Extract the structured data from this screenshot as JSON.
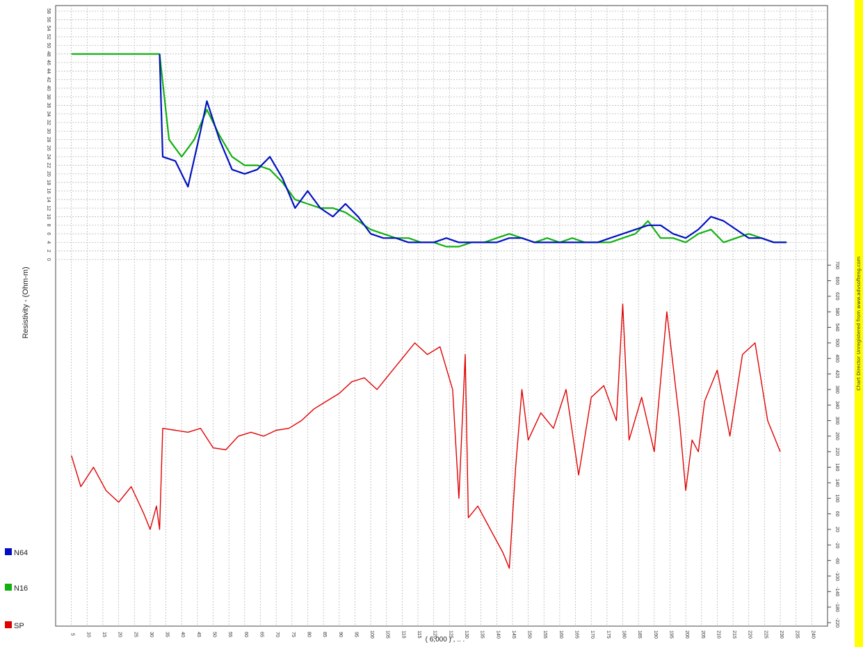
{
  "chart_data": {
    "type": "line",
    "orientation": "rotated-90-clockwise",
    "ylabel": "Resistivity - (Ohm-m)",
    "xlabel_partial": "( 6,000 )  ,  ..  .",
    "side_note": "Chart Director Unregistered from www.advsofteng.com",
    "colors": {
      "SP": "#e00000",
      "N16": "#10b010",
      "N64": "#0010c0"
    },
    "legend": [
      "SP",
      "N16",
      "N64"
    ],
    "legend_placement": "bottom-left",
    "grid": true,
    "depth_axis": {
      "ticks": [
        "5",
        "10",
        "15",
        "20",
        "25",
        "30",
        "35",
        "40",
        "45",
        "50",
        "55",
        "60",
        "65",
        "70",
        "75",
        "80",
        "85",
        "90",
        "95",
        "100",
        "105",
        "110",
        "115",
        "120",
        "125",
        "130",
        "135",
        "140",
        "145",
        "150",
        "155",
        "160",
        "165",
        "170",
        "175",
        "180",
        "185",
        "190",
        "195",
        "200",
        "205",
        "210",
        "215",
        "220",
        "225",
        "230",
        "235",
        "240"
      ]
    },
    "resistivity_axis": {
      "range": [
        0,
        58
      ],
      "ticks": [
        "0",
        "2",
        "4",
        "6",
        "8",
        "10",
        "12",
        "14",
        "16",
        "18",
        "20",
        "22",
        "24",
        "26",
        "28",
        "30",
        "32",
        "34",
        "36",
        "38",
        "40",
        "42",
        "44",
        "46",
        "48",
        "50",
        "52",
        "54",
        "56",
        "58"
      ]
    },
    "sp_axis": {
      "range": [
        -220,
        720
      ],
      "ticks": [
        "-220",
        "-180",
        "-140",
        "-100",
        "-60",
        "-20",
        "20",
        "60",
        "100",
        "140",
        "180",
        "220",
        "260",
        "300",
        "340",
        "380",
        "420",
        "460",
        "500",
        "540",
        "580",
        "620",
        "660",
        "700"
      ]
    },
    "series": [
      {
        "name": "N16",
        "axis": "resistivity",
        "values": [
          [
            5,
            48
          ],
          [
            10,
            48
          ],
          [
            15,
            48
          ],
          [
            20,
            48
          ],
          [
            25,
            48
          ],
          [
            30,
            48
          ],
          [
            33,
            48
          ],
          [
            36,
            28
          ],
          [
            40,
            24
          ],
          [
            44,
            28
          ],
          [
            48,
            35
          ],
          [
            52,
            29
          ],
          [
            56,
            24
          ],
          [
            60,
            22
          ],
          [
            64,
            22
          ],
          [
            68,
            21
          ],
          [
            72,
            18
          ],
          [
            76,
            14
          ],
          [
            80,
            13
          ],
          [
            84,
            12
          ],
          [
            88,
            12
          ],
          [
            92,
            11
          ],
          [
            96,
            9
          ],
          [
            100,
            7
          ],
          [
            104,
            6
          ],
          [
            108,
            5
          ],
          [
            112,
            5
          ],
          [
            116,
            4
          ],
          [
            120,
            4
          ],
          [
            124,
            3
          ],
          [
            128,
            3
          ],
          [
            132,
            4
          ],
          [
            136,
            4
          ],
          [
            140,
            5
          ],
          [
            144,
            6
          ],
          [
            148,
            5
          ],
          [
            152,
            4
          ],
          [
            156,
            5
          ],
          [
            160,
            4
          ],
          [
            164,
            5
          ],
          [
            168,
            4
          ],
          [
            172,
            4
          ],
          [
            176,
            4
          ],
          [
            180,
            5
          ],
          [
            184,
            6
          ],
          [
            188,
            9
          ],
          [
            192,
            5
          ],
          [
            196,
            5
          ],
          [
            200,
            4
          ],
          [
            204,
            6
          ],
          [
            208,
            7
          ],
          [
            212,
            4
          ],
          [
            216,
            5
          ],
          [
            220,
            6
          ],
          [
            224,
            5
          ],
          [
            228,
            4
          ],
          [
            232,
            4
          ]
        ]
      },
      {
        "name": "N64",
        "axis": "resistivity",
        "values": [
          [
            33,
            48
          ],
          [
            34,
            24
          ],
          [
            38,
            23
          ],
          [
            42,
            17
          ],
          [
            46,
            30
          ],
          [
            48,
            37
          ],
          [
            52,
            28
          ],
          [
            56,
            21
          ],
          [
            60,
            20
          ],
          [
            64,
            21
          ],
          [
            68,
            24
          ],
          [
            72,
            19
          ],
          [
            76,
            12
          ],
          [
            80,
            16
          ],
          [
            84,
            12
          ],
          [
            88,
            10
          ],
          [
            92,
            13
          ],
          [
            96,
            10
          ],
          [
            100,
            6
          ],
          [
            104,
            5
          ],
          [
            108,
            5
          ],
          [
            112,
            4
          ],
          [
            116,
            4
          ],
          [
            120,
            4
          ],
          [
            124,
            5
          ],
          [
            128,
            4
          ],
          [
            132,
            4
          ],
          [
            136,
            4
          ],
          [
            140,
            4
          ],
          [
            144,
            5
          ],
          [
            148,
            5
          ],
          [
            152,
            4
          ],
          [
            156,
            4
          ],
          [
            160,
            4
          ],
          [
            164,
            4
          ],
          [
            168,
            4
          ],
          [
            172,
            4
          ],
          [
            176,
            5
          ],
          [
            180,
            6
          ],
          [
            184,
            7
          ],
          [
            188,
            8
          ],
          [
            192,
            8
          ],
          [
            196,
            6
          ],
          [
            200,
            5
          ],
          [
            204,
            7
          ],
          [
            208,
            10
          ],
          [
            212,
            9
          ],
          [
            216,
            7
          ],
          [
            220,
            5
          ],
          [
            224,
            5
          ],
          [
            228,
            4
          ],
          [
            232,
            4
          ]
        ]
      },
      {
        "name": "SP",
        "axis": "sp",
        "values": [
          [
            5,
            210
          ],
          [
            8,
            130
          ],
          [
            12,
            180
          ],
          [
            16,
            120
          ],
          [
            20,
            90
          ],
          [
            24,
            130
          ],
          [
            28,
            60
          ],
          [
            30,
            20
          ],
          [
            32,
            80
          ],
          [
            33,
            20
          ],
          [
            34,
            280
          ],
          [
            38,
            275
          ],
          [
            42,
            270
          ],
          [
            46,
            280
          ],
          [
            50,
            230
          ],
          [
            54,
            225
          ],
          [
            58,
            260
          ],
          [
            62,
            270
          ],
          [
            66,
            260
          ],
          [
            70,
            275
          ],
          [
            74,
            280
          ],
          [
            78,
            300
          ],
          [
            82,
            330
          ],
          [
            86,
            350
          ],
          [
            90,
            370
          ],
          [
            94,
            400
          ],
          [
            98,
            410
          ],
          [
            102,
            380
          ],
          [
            106,
            420
          ],
          [
            110,
            460
          ],
          [
            114,
            500
          ],
          [
            118,
            470
          ],
          [
            122,
            490
          ],
          [
            126,
            380
          ],
          [
            128,
            100
          ],
          [
            130,
            470
          ],
          [
            131,
            50
          ],
          [
            134,
            80
          ],
          [
            138,
            20
          ],
          [
            142,
            -40
          ],
          [
            144,
            -80
          ],
          [
            146,
            180
          ],
          [
            148,
            380
          ],
          [
            150,
            250
          ],
          [
            154,
            320
          ],
          [
            158,
            280
          ],
          [
            162,
            380
          ],
          [
            166,
            160
          ],
          [
            170,
            360
          ],
          [
            174,
            390
          ],
          [
            178,
            300
          ],
          [
            180,
            600
          ],
          [
            182,
            250
          ],
          [
            186,
            360
          ],
          [
            190,
            220
          ],
          [
            194,
            580
          ],
          [
            198,
            300
          ],
          [
            200,
            120
          ],
          [
            202,
            250
          ],
          [
            204,
            220
          ],
          [
            206,
            350
          ],
          [
            210,
            430
          ],
          [
            214,
            260
          ],
          [
            218,
            470
          ],
          [
            222,
            500
          ],
          [
            226,
            300
          ],
          [
            230,
            220
          ]
        ]
      }
    ]
  }
}
